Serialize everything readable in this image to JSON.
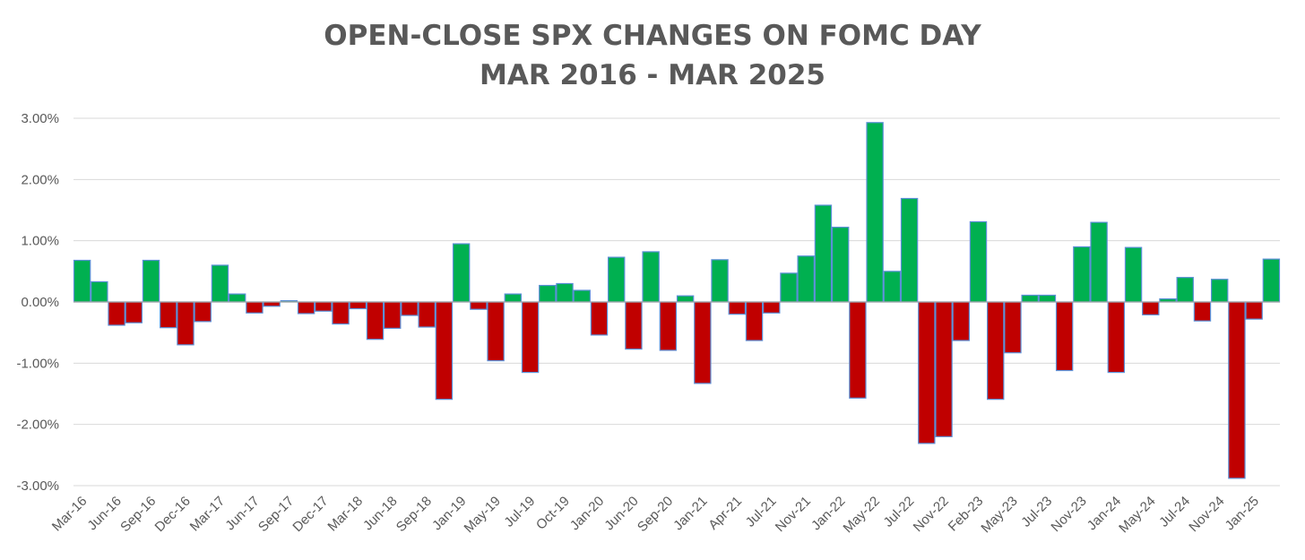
{
  "chart_data": {
    "type": "bar",
    "title": "OPEN-CLOSE SPX CHANGES ON FOMC DAY",
    "subtitle": "MAR 2016 - MAR 2025",
    "xlabel": "",
    "ylabel": "",
    "ylim": [
      -3.0,
      3.0
    ],
    "y_ticks": [
      "3.00%",
      "2.00%",
      "1.00%",
      "0.00%",
      "-1.00%",
      "-2.00%",
      "-3.00%"
    ],
    "y_tick_values": [
      3,
      2,
      1,
      0,
      -1,
      -2,
      -3
    ],
    "grid": true,
    "legend": "none",
    "colors": {
      "positive": "#00B050",
      "negative": "#C00000",
      "border": "#5B8FD6",
      "grid": "#D9D9D9",
      "axis": "#A6A6A6",
      "text": "#595959"
    },
    "x_tick_labels": [
      "Mar-16",
      "Jun-16",
      "Sep-16",
      "Dec-16",
      "Mar-17",
      "Jun-17",
      "Sep-17",
      "Dec-17",
      "Mar-18",
      "Jun-18",
      "Sep-18",
      "Jan-19",
      "May-19",
      "Jul-19",
      "Oct-19",
      "Jan-20",
      "Jun-20",
      "Sep-20",
      "Jan-21",
      "Apr-21",
      "Jul-21",
      "Nov-21",
      "Jan-22",
      "May-22",
      "Jul-22",
      "Nov-22",
      "Feb-23",
      "May-23",
      "Jul-23",
      "Nov-23",
      "Jan-24",
      "May-24",
      "Jul-24",
      "Nov-24",
      "Jan-25"
    ],
    "tick_every": 2,
    "values": [
      0.68,
      0.33,
      -0.38,
      -0.34,
      0.68,
      -0.42,
      -0.7,
      -0.32,
      0.6,
      0.13,
      -0.18,
      -0.07,
      0.02,
      -0.19,
      -0.15,
      -0.36,
      -0.11,
      -0.61,
      -0.43,
      -0.22,
      -0.41,
      -1.59,
      0.95,
      -0.12,
      -0.96,
      0.13,
      -1.15,
      0.27,
      0.3,
      0.19,
      -0.54,
      0.73,
      -0.77,
      0.82,
      -0.79,
      0.1,
      -1.33,
      0.69,
      -0.2,
      -0.63,
      -0.18,
      0.47,
      0.75,
      1.58,
      1.22,
      -1.57,
      2.93,
      0.5,
      1.69,
      -2.31,
      -2.2,
      -0.63,
      1.31,
      -1.59,
      -0.83,
      0.11,
      0.11,
      -1.12,
      0.9,
      1.3,
      -1.15,
      0.89,
      -0.21,
      0.05,
      0.4,
      -0.31,
      0.37,
      -2.88,
      -0.28,
      0.7
    ]
  }
}
